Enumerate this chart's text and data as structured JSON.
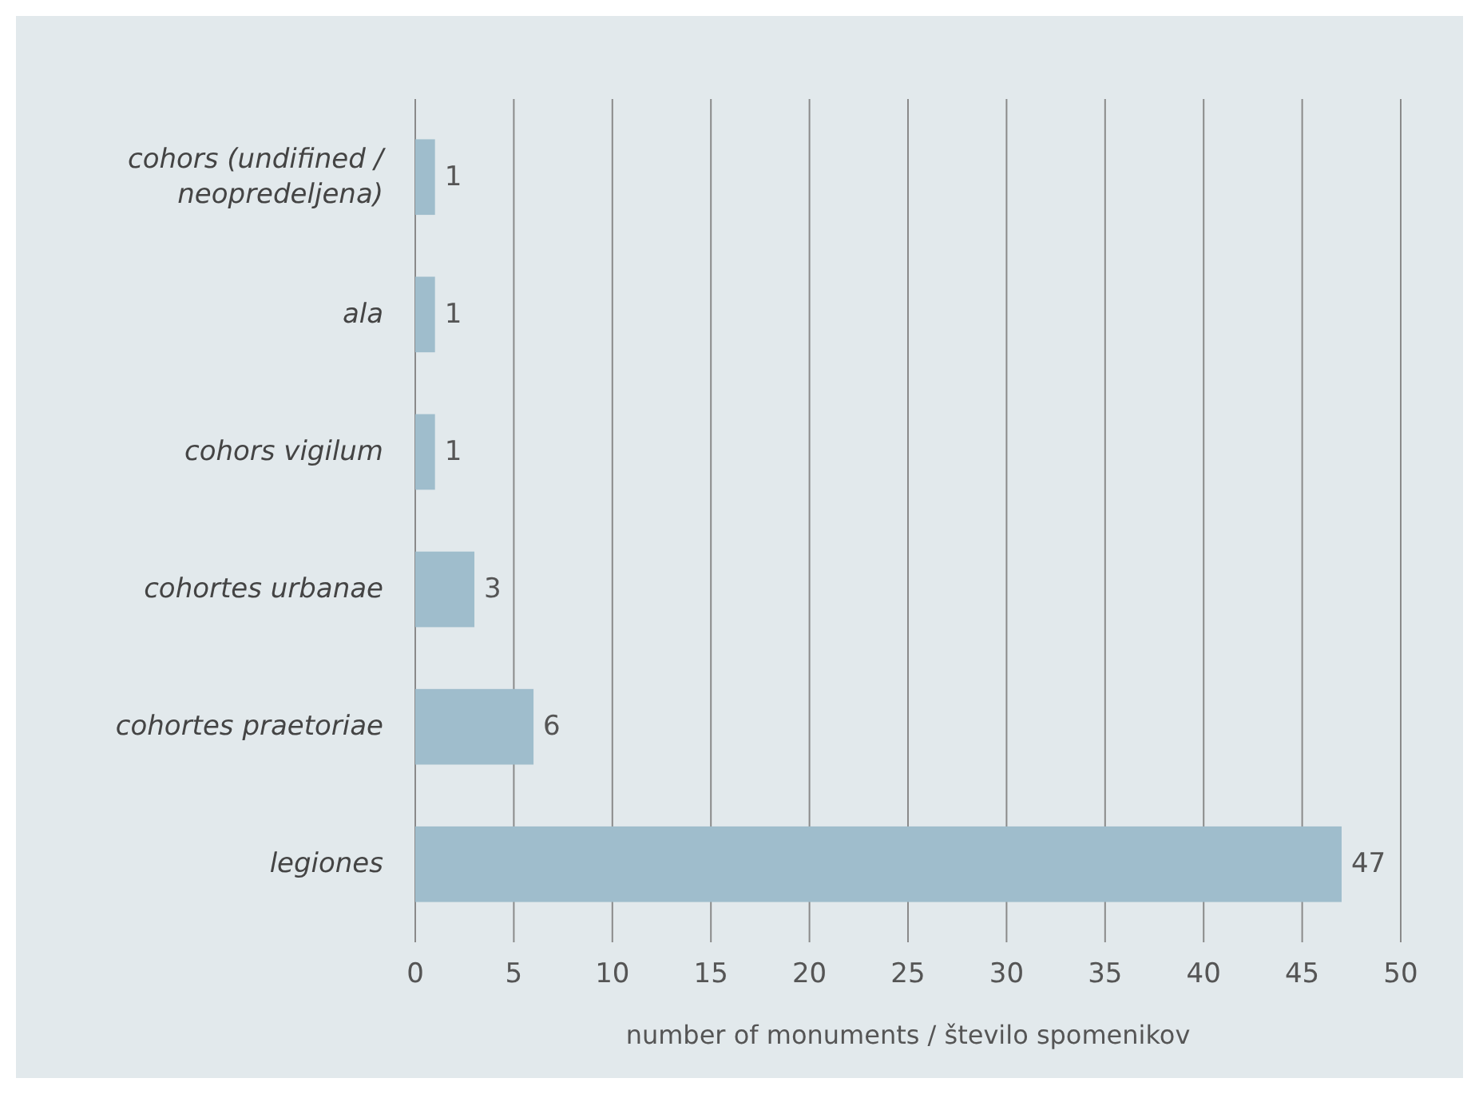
{
  "chart_data": {
    "type": "bar",
    "orientation": "horizontal",
    "categories": [
      "cohors (undifined / neopredeljena)",
      "ala",
      "cohors vigilum",
      "cohortes urbanae",
      "cohortes praetoriae",
      "legiones"
    ],
    "values": [
      1,
      1,
      1,
      3,
      6,
      47
    ],
    "color": "#9fbdcc",
    "xlim": [
      0,
      50
    ],
    "xticks": [
      0,
      5,
      10,
      15,
      20,
      25,
      30,
      35,
      40,
      45,
      50
    ],
    "xlabel": "number of monuments / število spomenikov",
    "grid": "x",
    "data_labels": true
  }
}
